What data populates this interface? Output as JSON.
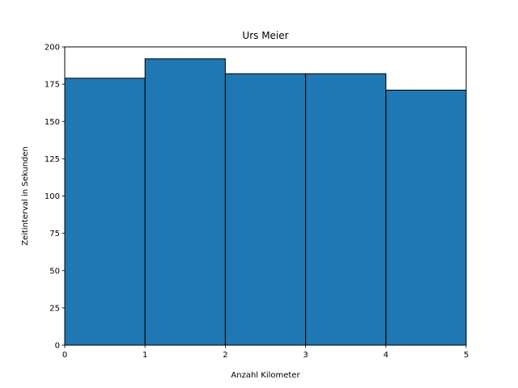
{
  "chart_data": {
    "type": "bar",
    "title": "Urs Meier",
    "xlabel": "Anzahl Kilometer",
    "ylabel": "Zeitinterval in Sekunden",
    "bins": [
      {
        "x_start": 0,
        "x_end": 1,
        "value": 179
      },
      {
        "x_start": 1,
        "x_end": 2,
        "value": 192
      },
      {
        "x_start": 2,
        "x_end": 3,
        "value": 182
      },
      {
        "x_start": 3,
        "x_end": 4,
        "value": 182
      },
      {
        "x_start": 4,
        "x_end": 5,
        "value": 171
      }
    ],
    "xlim": [
      0,
      5
    ],
    "ylim": [
      0,
      200
    ],
    "xticks": [
      "0",
      "1",
      "2",
      "3",
      "4",
      "5"
    ],
    "yticks": [
      "0",
      "25",
      "50",
      "75",
      "100",
      "125",
      "150",
      "175",
      "200"
    ],
    "bar_color": "#1f77b4",
    "edge_color": "#000000",
    "grid": false,
    "legend": "none"
  }
}
